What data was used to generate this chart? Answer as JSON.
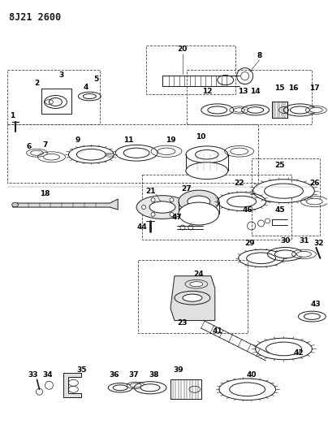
{
  "title": "8J21 2600",
  "bg_color": "#ffffff",
  "line_color": "#1a1a1a",
  "fig_width": 4.04,
  "fig_height": 5.33,
  "dpi": 100,
  "gray_fill": "#c8c8c8",
  "dark_fill": "#555555",
  "med_fill": "#999999"
}
